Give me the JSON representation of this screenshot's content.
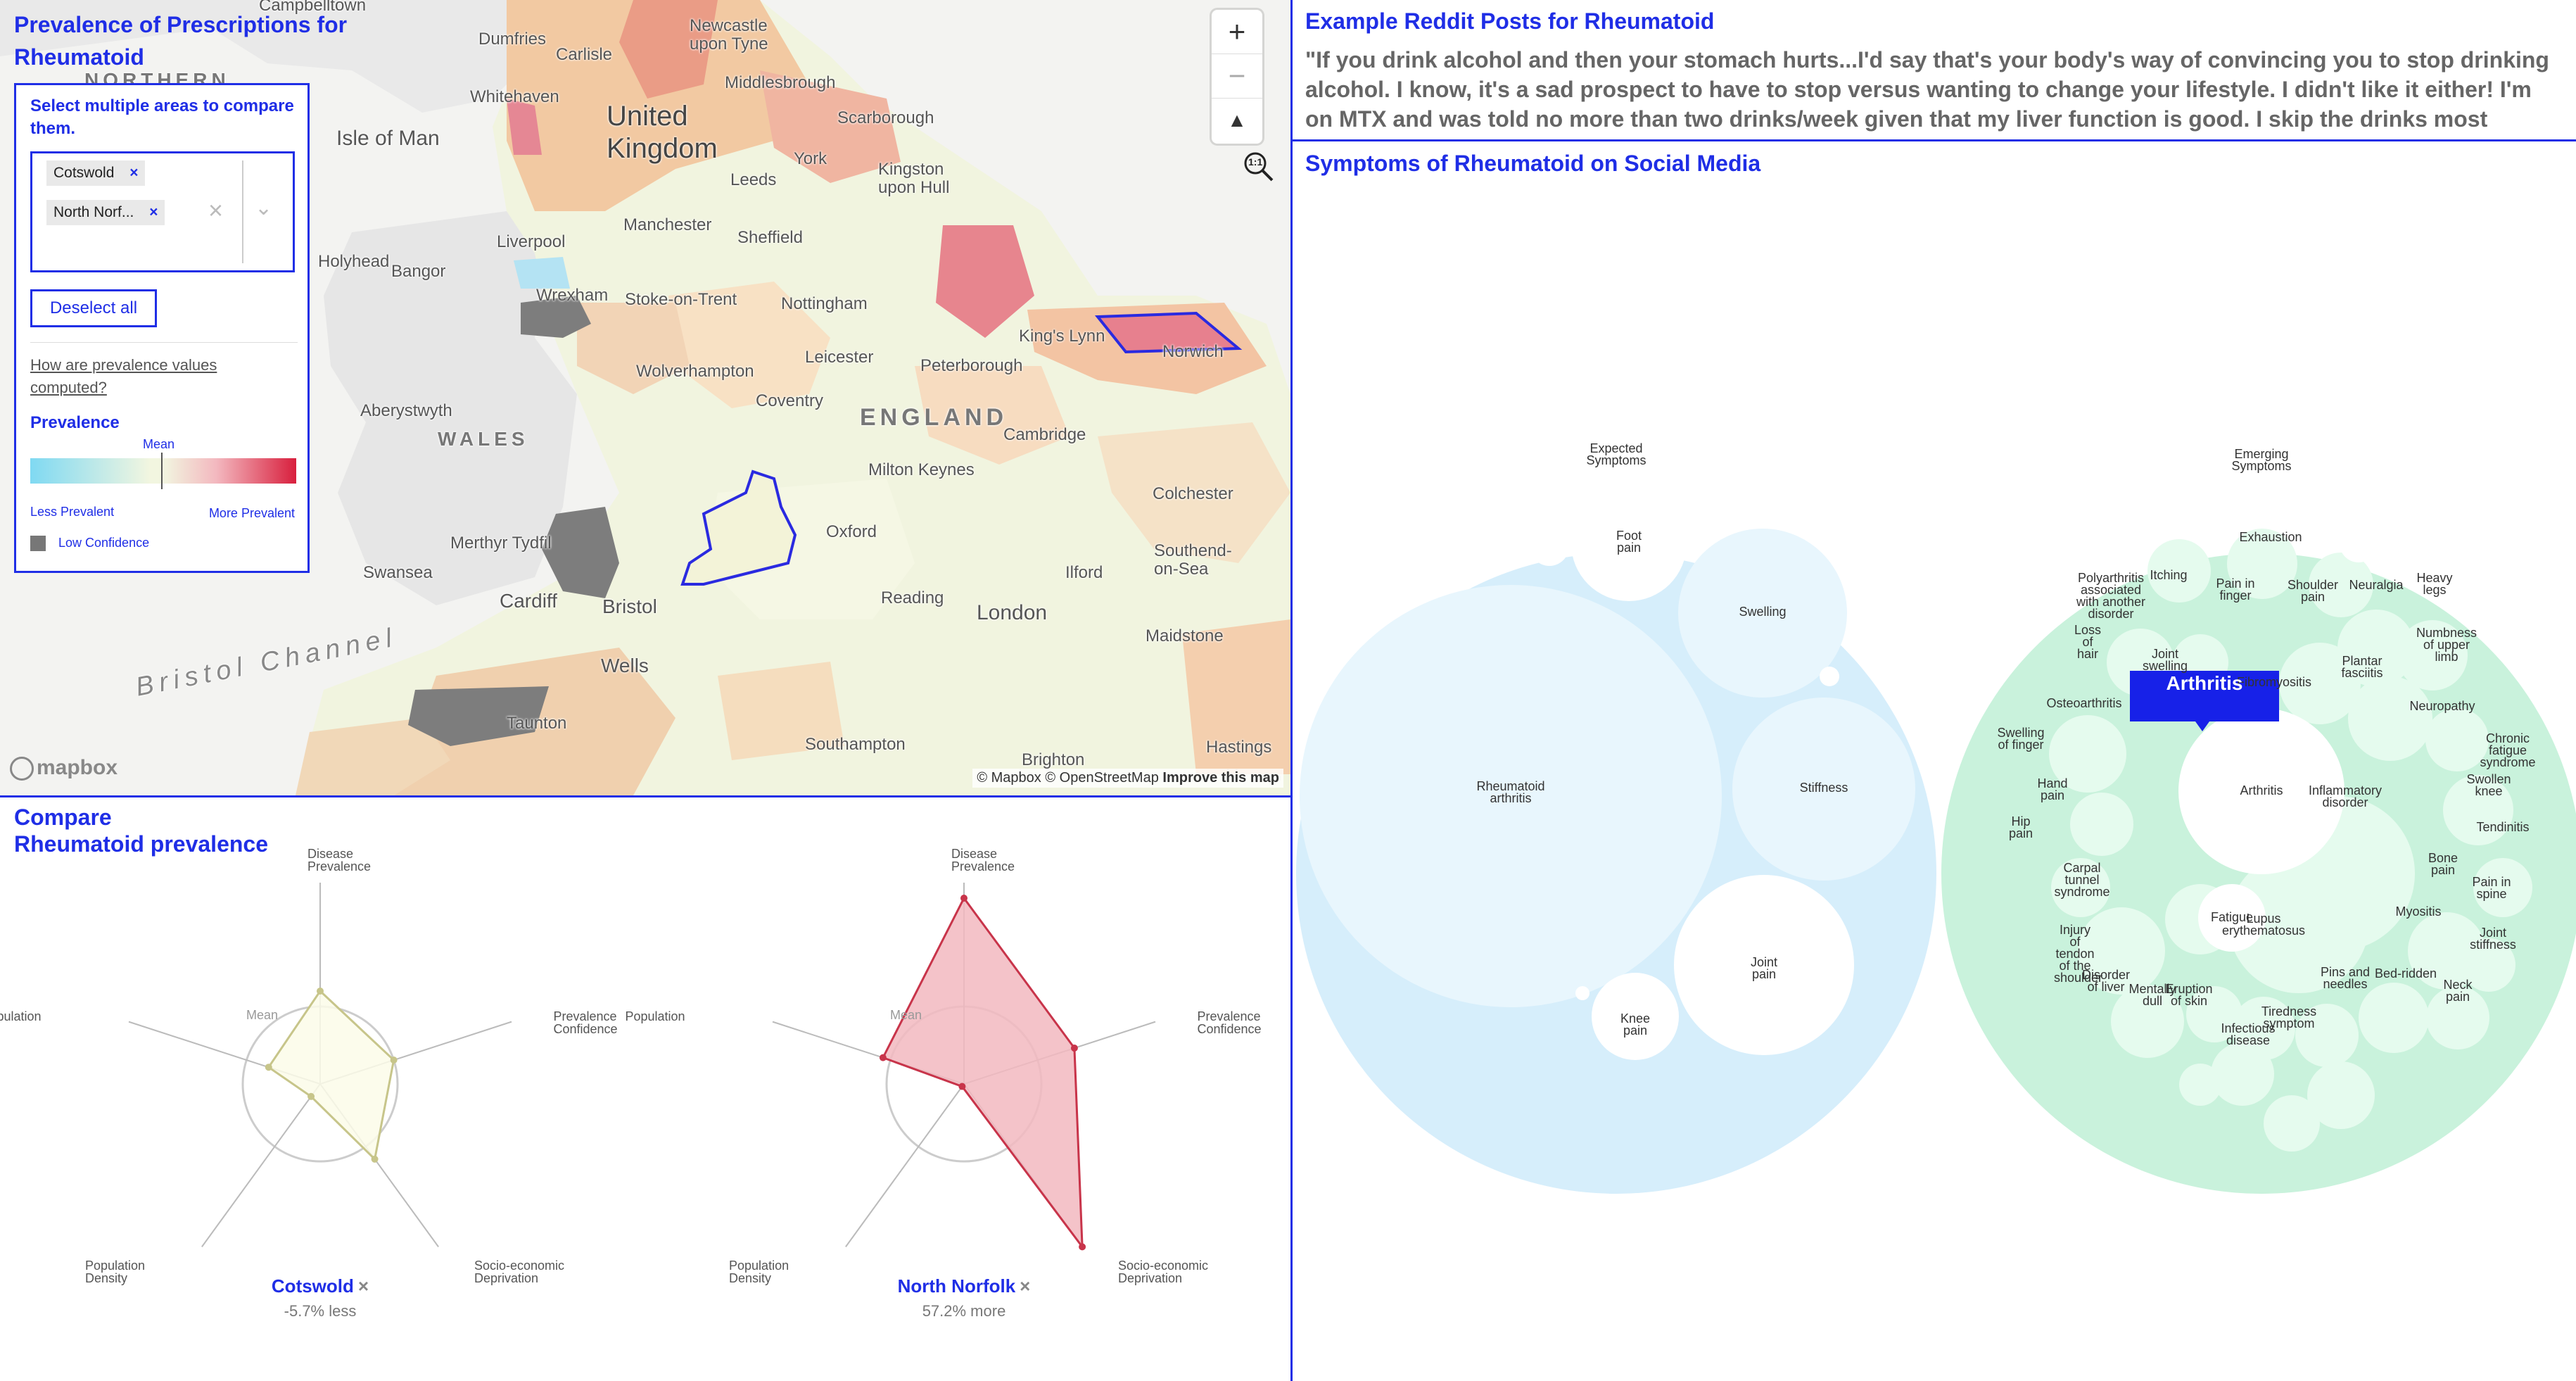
{
  "map_panel": {
    "title": "Prevalence of Prescriptions for Rheumatoid",
    "instruction": "Select multiple areas to compare them.",
    "selected_areas": [
      "Cotswold",
      "North Norf..."
    ],
    "deselect_label": "Deselect all",
    "help_link": "How are prevalence values computed?",
    "legend_title": "Prevalence",
    "legend_mean": "Mean",
    "legend_less": "Less Prevalent",
    "legend_more": "More Prevalent",
    "legend_low_conf": "Low Confidence",
    "zoom_in": "+",
    "zoom_out": "−",
    "compass": "▲",
    "attribution_mapbox": "© Mapbox",
    "attribution_osm": "© OpenStreetMap",
    "attribution_improve": "Improve this map",
    "mapbox_logo": "mapbox",
    "zoom_fit_icon": "1:1",
    "colors": {
      "low": "#7fd9f2",
      "mid": "#f2f6e0",
      "high": "#e0334f",
      "low_conf": "#7a7a7a",
      "accent": "#1f2ee6"
    },
    "place_labels": [
      {
        "key": "dumfries",
        "text": "Dumfries"
      },
      {
        "key": "newcastle",
        "text": "Newcastle upon Tyne"
      },
      {
        "key": "carlisle",
        "text": "Carlisle"
      },
      {
        "key": "northern",
        "text": "NORTHERN"
      },
      {
        "key": "uk",
        "text": "United Kingdom"
      },
      {
        "key": "middlesbrough",
        "text": "Middlesbrough"
      },
      {
        "key": "whitehaven",
        "text": "Whitehaven"
      },
      {
        "key": "isleofman",
        "text": "Isle of Man"
      },
      {
        "key": "scarborough",
        "text": "Scarborough"
      },
      {
        "key": "york",
        "text": "York"
      },
      {
        "key": "leeds",
        "text": "Leeds"
      },
      {
        "key": "kingston",
        "text": "Kingston upon Hull"
      },
      {
        "key": "manchester",
        "text": "Manchester"
      },
      {
        "key": "sheffield",
        "text": "Sheffield"
      },
      {
        "key": "liverpool",
        "text": "Liverpool"
      },
      {
        "key": "holyhead",
        "text": "Holyhead"
      },
      {
        "key": "bangor",
        "text": "Bangor"
      },
      {
        "key": "wrexham",
        "text": "Wrexham"
      },
      {
        "key": "stoke",
        "text": "Stoke-on-Trent"
      },
      {
        "key": "nottingham",
        "text": "Nottingham"
      },
      {
        "key": "kingslynn",
        "text": "King's Lynn"
      },
      {
        "key": "norwich",
        "text": "Norwich"
      },
      {
        "key": "leicester",
        "text": "Leicester"
      },
      {
        "key": "peterborough",
        "text": "Peterborough"
      },
      {
        "key": "wolverhampton",
        "text": "Wolverhampton"
      },
      {
        "key": "aberystwyth",
        "text": "Aberystwyth"
      },
      {
        "key": "coventry",
        "text": "Coventry"
      },
      {
        "key": "england",
        "text": "ENGLAND"
      },
      {
        "key": "cambridge",
        "text": "Cambridge"
      },
      {
        "key": "wales",
        "text": "WALES"
      },
      {
        "key": "miltonkeynes",
        "text": "Milton Keynes"
      },
      {
        "key": "colchester",
        "text": "Colchester"
      },
      {
        "key": "merthyr",
        "text": "Merthyr Tydfil"
      },
      {
        "key": "oxford",
        "text": "Oxford"
      },
      {
        "key": "ilford",
        "text": "Ilford"
      },
      {
        "key": "southend",
        "text": "Southend-on-Sea"
      },
      {
        "key": "swansea",
        "text": "Swansea"
      },
      {
        "key": "cardiff",
        "text": "Cardiff"
      },
      {
        "key": "bristol",
        "text": "Bristol"
      },
      {
        "key": "reading",
        "text": "Reading"
      },
      {
        "key": "london",
        "text": "London"
      },
      {
        "key": "maidstone",
        "text": "Maidstone"
      },
      {
        "key": "bristolchannel",
        "text": "Bristol Channel"
      },
      {
        "key": "wells",
        "text": "Wells"
      },
      {
        "key": "taunton",
        "text": "Taunton"
      },
      {
        "key": "southampton",
        "text": "Southampton"
      },
      {
        "key": "brighton",
        "text": "Brighton"
      },
      {
        "key": "hastings",
        "text": "Hastings"
      },
      {
        "key": "campbelltown",
        "text": "Campbelltown"
      }
    ]
  },
  "reddit": {
    "title": "Example Reddit Posts for Rheumatoid",
    "post": "\"If you drink alcohol and then your stomach hurts...I'd say that's your body's way of convincing you to stop drinking alcohol. I know, it's a sad prospect to have to stop versus wanting to change your lifestyle. I didn't like it either! I'm on MTX and was told no more than two drinks/week given that my liver function is good. I skip the drinks most"
  },
  "symptoms": {
    "title": "Symptoms of Rheumatoid on Social Media",
    "expected_label": "Expected Symptoms",
    "emerging_label": "Emerging Symptoms",
    "tooltip": "Arthritis",
    "expected_items": [
      {
        "key": "ra",
        "label": "Rheumatoid arthritis"
      },
      {
        "key": "foot",
        "label": "Foot pain"
      },
      {
        "key": "swelling",
        "label": "Swelling"
      },
      {
        "key": "stiffness",
        "label": "Stiffness"
      },
      {
        "key": "joint",
        "label": "Joint pain"
      },
      {
        "key": "knee",
        "label": "Knee pain"
      }
    ],
    "emerging_items": [
      {
        "key": "arthritis",
        "label": "Arthritis"
      },
      {
        "key": "exhaustion",
        "label": "Exhaustion"
      },
      {
        "key": "polyarthritis",
        "label": "Polyarthritis associated with another disorder"
      },
      {
        "key": "itching",
        "label": "Itching"
      },
      {
        "key": "painfinger",
        "label": "Pain in finger"
      },
      {
        "key": "shoulder",
        "label": "Shoulder pain"
      },
      {
        "key": "neuralgia",
        "label": "Neuralgia"
      },
      {
        "key": "heavylegs",
        "label": "Heavy legs"
      },
      {
        "key": "losshair",
        "label": "Loss of hair"
      },
      {
        "key": "jointswelling",
        "label": "Joint swelling"
      },
      {
        "key": "numbness",
        "label": "Numbness of upper limb"
      },
      {
        "key": "plantar",
        "label": "Plantar fasciitis"
      },
      {
        "key": "fibromyositis",
        "label": "Fibromyositis"
      },
      {
        "key": "osteoarthritis",
        "label": "Osteoarthritis"
      },
      {
        "key": "neuropathy",
        "label": "Neuropathy"
      },
      {
        "key": "swellingfinger",
        "label": "Swelling of finger"
      },
      {
        "key": "chronicfatigue",
        "label": "Chronic fatigue syndrome"
      },
      {
        "key": "handpain",
        "label": "Hand pain"
      },
      {
        "key": "inflammatory",
        "label": "Inflammatory disorder"
      },
      {
        "key": "swollenknee",
        "label": "Swollen knee"
      },
      {
        "key": "hippain",
        "label": "Hip pain"
      },
      {
        "key": "tendinitis",
        "label": "Tendinitis"
      },
      {
        "key": "bonepain",
        "label": "Bone pain"
      },
      {
        "key": "carpal",
        "label": "Carpal tunnel syndrome"
      },
      {
        "key": "painspine",
        "label": "Pain in spine"
      },
      {
        "key": "fatigue",
        "label": "Fatigue"
      },
      {
        "key": "myositis",
        "label": "Myositis"
      },
      {
        "key": "lupus",
        "label": "Lupus erythematosus"
      },
      {
        "key": "jointstiff",
        "label": "Joint stiffness"
      },
      {
        "key": "tendon",
        "label": "Injury of tendon of the shoulder"
      },
      {
        "key": "liver",
        "label": "Disorder of liver"
      },
      {
        "key": "mentallydull",
        "label": "Mentally dull"
      },
      {
        "key": "eruption",
        "label": "Eruption of skin"
      },
      {
        "key": "pins",
        "label": "Pins and needles"
      },
      {
        "key": "bedridden",
        "label": "Bed-ridden"
      },
      {
        "key": "neckpain",
        "label": "Neck pain"
      },
      {
        "key": "tiredness",
        "label": "Tiredness symptom"
      },
      {
        "key": "infectious",
        "label": "Infectious disease"
      }
    ]
  },
  "compare": {
    "title_line1": "Compare",
    "title_line2": "Rheumatoid prevalence",
    "axes": [
      "Disease Prevalence",
      "Prevalence Confidence",
      "Socio-economic Deprivation",
      "Population Density",
      "Population"
    ],
    "mean_label": "Mean",
    "areas": [
      {
        "name": "Cotswold",
        "remove": "×",
        "delta": "-5.7% less",
        "values": [
          0.6,
          0.5,
          0.6,
          0.1,
          0.35
        ],
        "color": "#c7c58a",
        "fill": "#fbfbe9"
      },
      {
        "name": "North Norfolk",
        "remove": "×",
        "delta": "57.2% more",
        "values": [
          1.2,
          0.75,
          1.3,
          0.0,
          0.55
        ],
        "color": "#c8344a",
        "fill": "#f2b9c0"
      }
    ]
  }
}
